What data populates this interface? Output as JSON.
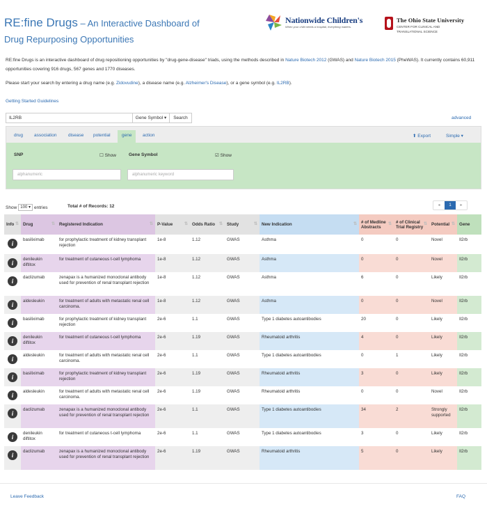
{
  "header": {
    "title": "RE:fine Drugs",
    "title_suffix": " – An Interactive Dashboard of",
    "title_line2": "Drug Repurposing Opportunities",
    "logo1_name": "Nationwide Children's",
    "logo1_tag": "When your child needs a hospital, everything matters.",
    "logo2_name": "The Ohio State University",
    "logo2_sub1": "CENTER FOR CLINICAL AND",
    "logo2_sub2": "TRANSLATIONAL SCIENCE"
  },
  "description": {
    "part1": "RE:fine Drugs is an interactive dashboard of drug repositioning opportunities by \"drug-gene-disease\" triads, using the methods described in ",
    "link1": "Nature Biotech 2012",
    "part2": " (GWAS) and ",
    "link2": "Nature Biotech 2015",
    "part3": " (PheWAS). It currently contains 60,911 opportunities covering 916 drugs, 567 genes and 1770 diseases."
  },
  "start": {
    "part1": "Please start your search by entering a drug name (e.g. ",
    "drug": "Zidovudine",
    "part2": "), a disease name (e.g. ",
    "disease": "Alzheimer's Disease",
    "part3": "), or a gene symbol (e.g. ",
    "gene": "IL2RB",
    "part4": ")."
  },
  "guide_link": "Getting Started Guidelines",
  "search": {
    "value": "IL2RB",
    "type": "Gene Symbol ▾",
    "button": "Search",
    "advanced": "advanced"
  },
  "tabs": [
    {
      "label": "drug"
    },
    {
      "label": "association"
    },
    {
      "label": "disease"
    },
    {
      "label": "potential"
    },
    {
      "label": "gene"
    },
    {
      "label": "action"
    }
  ],
  "toolbar": {
    "export": "⬆ Export",
    "simple": "Simple ▾"
  },
  "filters": {
    "snp_label": "SNP",
    "snp_show": "Show",
    "gene_label": "Gene Symbol",
    "gene_show": "Show",
    "snp_placeholder": "alphanumeric",
    "gene_placeholder": "alphanumeric keyword"
  },
  "table_meta": {
    "show_prefix": "Show",
    "entries_value": "100 ▾",
    "show_suffix": "entries",
    "total": "Total # of Records: 12",
    "page_prev": "◂",
    "page": "1",
    "page_next": "▸"
  },
  "columns": [
    "Info",
    "Drug",
    "Registered Indication",
    "P-Value",
    "Odds Ratio",
    "Study",
    "New Indication",
    "# of Medline Abstracts",
    "# of Clinical Trial Registry",
    "Potential",
    "Gene"
  ],
  "rows": [
    {
      "drug": "basiliximab",
      "indication": "for prophylactic treatment of kidney transplant rejection",
      "p": "1e-8",
      "or": "1.12",
      "study": "GWAS",
      "new": "Asthma",
      "medline": "0",
      "trials": "0",
      "potential": "Novel",
      "gene": "Il2rb"
    },
    {
      "drug": "denileukin diftitox",
      "indication": "for treatment of cutaneous t-cell lymphoma",
      "p": "1e-8",
      "or": "1.12",
      "study": "GWAS",
      "new": "Asthma",
      "medline": "0",
      "trials": "0",
      "potential": "Novel",
      "gene": "Il2rb"
    },
    {
      "drug": "daclizumab",
      "indication": "zenapax is a humanized monoclonal antibody used for prevention of renal transplant rejection",
      "p": "1e-8",
      "or": "1.12",
      "study": "GWAS",
      "new": "Asthma",
      "medline": "6",
      "trials": "0",
      "potential": "Likely",
      "gene": "Il2rb"
    },
    {
      "drug": "aldesleukin",
      "indication": "for treatment of adults with metastatic renal cell carcinoma.",
      "p": "1e-8",
      "or": "1.12",
      "study": "GWAS",
      "new": "Asthma",
      "medline": "0",
      "trials": "0",
      "potential": "Novel",
      "gene": "Il2rb"
    },
    {
      "drug": "basiliximab",
      "indication": "for prophylactic treatment of kidney transplant rejection",
      "p": "2e-6",
      "or": "1.1",
      "study": "GWAS",
      "new": "Type 1 diabetes autoantibodies",
      "medline": "20",
      "trials": "0",
      "potential": "Likely",
      "gene": "Il2rb"
    },
    {
      "drug": "denileukin diftitox",
      "indication": "for treatment of cutaneous t-cell lymphoma",
      "p": "2e-6",
      "or": "1.19",
      "study": "GWAS",
      "new": "Rheumatoid arthritis",
      "medline": "4",
      "trials": "0",
      "potential": "Likely",
      "gene": "Il2rb"
    },
    {
      "drug": "aldesleukin",
      "indication": "for treatment of adults with metastatic renal cell carcinoma.",
      "p": "2e-6",
      "or": "1.1",
      "study": "GWAS",
      "new": "Type 1 diabetes autoantibodies",
      "medline": "0",
      "trials": "1",
      "potential": "Likely",
      "gene": "Il2rb"
    },
    {
      "drug": "basiliximab",
      "indication": "for prophylactic treatment of kidney transplant rejection",
      "p": "2e-6",
      "or": "1.19",
      "study": "GWAS",
      "new": "Rheumatoid arthritis",
      "medline": "3",
      "trials": "0",
      "potential": "Likely",
      "gene": "Il2rb"
    },
    {
      "drug": "aldesleukin",
      "indication": "for treatment of adults with metastatic renal cell carcinoma.",
      "p": "2e-6",
      "or": "1.19",
      "study": "GWAS",
      "new": "Rheumatoid arthritis",
      "medline": "0",
      "trials": "0",
      "potential": "Novel",
      "gene": "Il2rb"
    },
    {
      "drug": "daclizumab",
      "indication": "zenapax is a humanized monoclonal antibody used for prevention of renal transplant rejection",
      "p": "2e-6",
      "or": "1.1",
      "study": "GWAS",
      "new": "Type 1 diabetes autoantibodies",
      "medline": "34",
      "trials": "2",
      "potential": "Strongly supported",
      "gene": "Il2rb"
    },
    {
      "drug": "denileukin diftitox",
      "indication": "for treatment of cutaneous t-cell lymphoma",
      "p": "2e-6",
      "or": "1.1",
      "study": "GWAS",
      "new": "Type 1 diabetes autoantibodies",
      "medline": "3",
      "trials": "0",
      "potential": "Likely",
      "gene": "Il2rb"
    },
    {
      "drug": "daclizumab",
      "indication": "zenapax is a humanized monoclonal antibody used for prevention of renal transplant rejection",
      "p": "2e-6",
      "or": "1.19",
      "study": "GWAS",
      "new": "Rheumatoid arthritis",
      "medline": "5",
      "trials": "0",
      "potential": "Likely",
      "gene": "Il2rb"
    }
  ],
  "footer": {
    "feedback": "Leave Feedback",
    "faq": "FAQ"
  }
}
